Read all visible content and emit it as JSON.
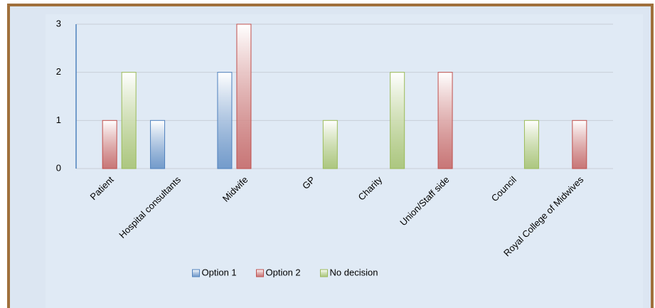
{
  "chart_data": {
    "type": "bar",
    "categories": [
      "Patient",
      "Hospital consultants",
      "Midwife",
      "GP",
      "Charity",
      "Union/Staff side",
      "Council",
      "Royal College of Midwives"
    ],
    "series": [
      {
        "name": "Option 1",
        "color": "#4f81bd",
        "values": [
          0,
          1,
          2,
          0,
          0,
          0,
          0,
          0
        ]
      },
      {
        "name": "Option 2",
        "color": "#c0504d",
        "values": [
          1,
          0,
          3,
          0,
          0,
          2,
          0,
          1
        ]
      },
      {
        "name": "No decision",
        "color": "#9bbb59",
        "values": [
          2,
          0,
          0,
          1,
          2,
          0,
          1,
          0
        ]
      }
    ],
    "ylim": [
      0,
      3
    ],
    "yticks": [
      0,
      1,
      2,
      3
    ],
    "grid": true,
    "legend": "bottom"
  }
}
